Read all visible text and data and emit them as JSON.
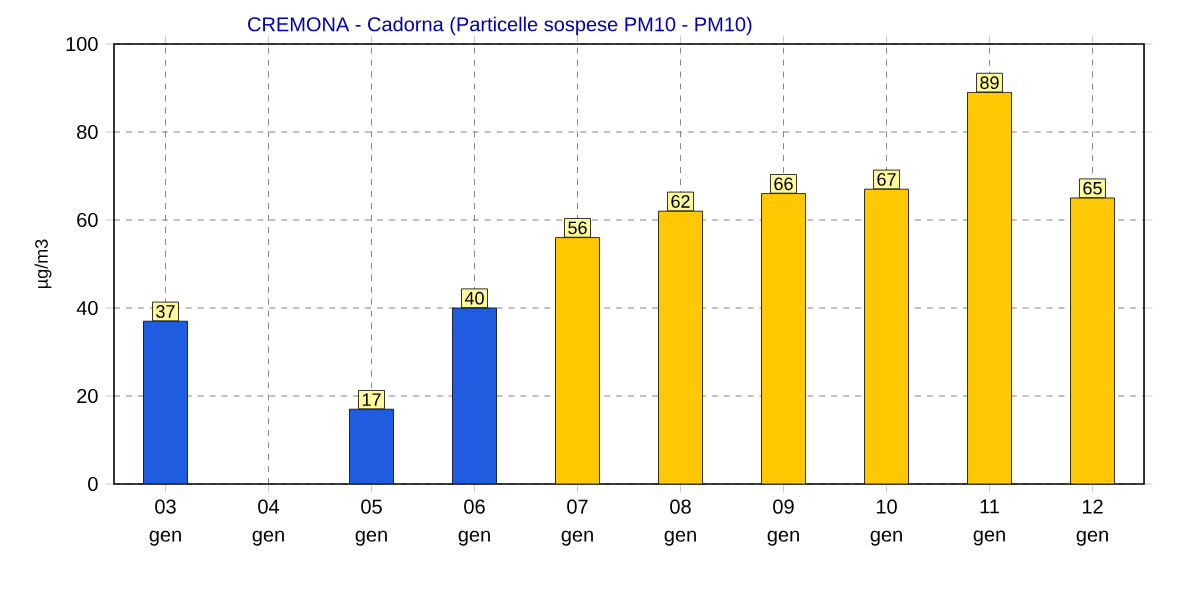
{
  "chart_data": {
    "type": "bar",
    "title": "CREMONA - Cadorna   (Particelle sospese PM10 - PM10)",
    "ylabel": "µg/m3",
    "categories": [
      "03 gen",
      "04 gen",
      "05 gen",
      "06 gen",
      "07 gen",
      "08 gen",
      "09 gen",
      "10 gen",
      "11 gen",
      "12 gen"
    ],
    "values": [
      37,
      null,
      17,
      40,
      56,
      62,
      66,
      67,
      89,
      65
    ],
    "colors": [
      "#1f5ce0",
      "#1f5ce0",
      "#1f5ce0",
      "#1f5ce0",
      "#ffc800",
      "#ffc800",
      "#ffc800",
      "#ffc800",
      "#ffc800",
      "#ffc800"
    ],
    "ylim": [
      0,
      100
    ],
    "yticks": [
      0,
      20,
      40,
      60,
      80,
      100
    ],
    "grid": true,
    "data_labels": true
  }
}
